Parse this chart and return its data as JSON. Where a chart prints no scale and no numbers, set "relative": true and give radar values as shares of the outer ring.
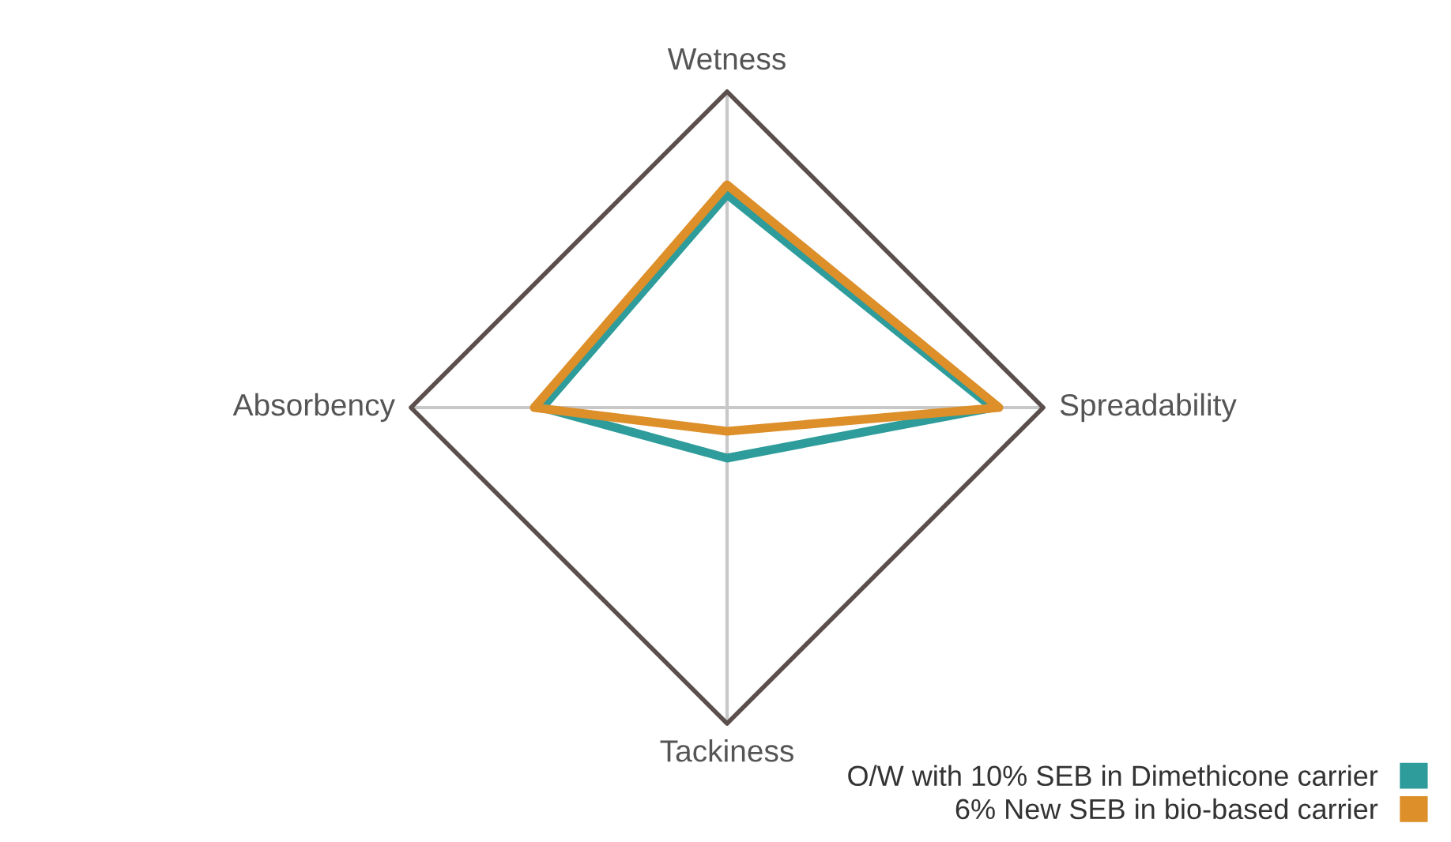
{
  "chart_data": {
    "type": "radar",
    "relative": true,
    "categories": [
      "Wetness",
      "Spreadability",
      "Tackiness",
      "Absorbency"
    ],
    "series": [
      {
        "name": "O/W with 10% SEB in Dimethicone carrier",
        "color": "#2e9c9a",
        "values": [
          0.675,
          0.84,
          0.16,
          0.585
        ]
      },
      {
        "name": "6% New SEB in bio-based carrier",
        "color": "#dd8f2a",
        "values": [
          0.705,
          0.86,
          0.075,
          0.61
        ]
      }
    ],
    "grid": true,
    "legend": "bottom right"
  }
}
